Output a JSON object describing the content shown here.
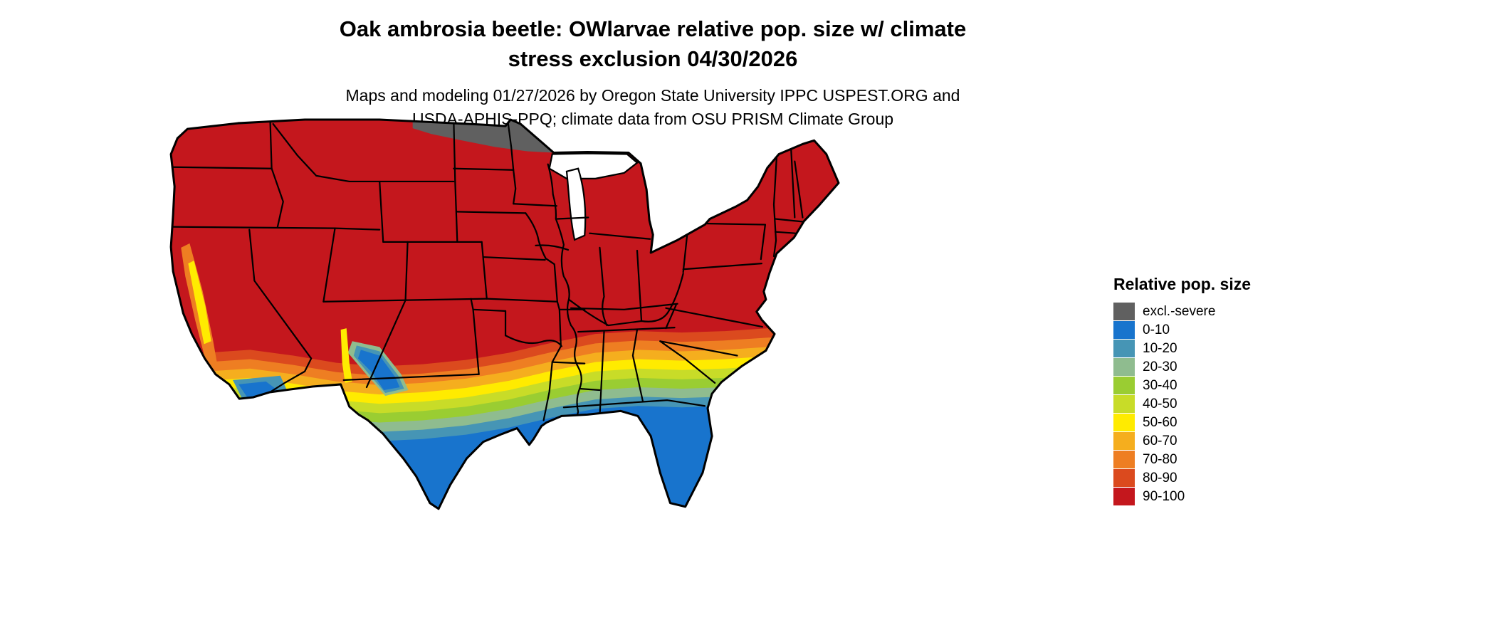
{
  "title": {
    "line1": "Oak ambrosia beetle: OWlarvae relative pop. size w/ climate",
    "line2": "stress exclusion 04/30/2026"
  },
  "subtitle": {
    "line1": "Maps and modeling 01/27/2026 by Oregon State University IPPC USPEST.ORG and",
    "line2": "USDA-APHIS-PPQ; climate data from OSU PRISM Climate Group"
  },
  "legend": {
    "title": "Relative pop. size",
    "items": [
      {
        "label": "excl.-severe",
        "color": "#606060"
      },
      {
        "label": "0-10",
        "color": "#1874CD"
      },
      {
        "label": "10-20",
        "color": "#4695B5"
      },
      {
        "label": "20-30",
        "color": "#8FBC8F"
      },
      {
        "label": "30-40",
        "color": "#9ACD32"
      },
      {
        "label": "40-50",
        "color": "#C8DC28"
      },
      {
        "label": "50-60",
        "color": "#FFEB00"
      },
      {
        "label": "60-70",
        "color": "#F5AE1E"
      },
      {
        "label": "70-80",
        "color": "#EE7E22"
      },
      {
        "label": "80-90",
        "color": "#DB4A1E"
      },
      {
        "label": "90-100",
        "color": "#C4171D"
      }
    ]
  },
  "map": {
    "border_color": "#000000",
    "water_color": "#ffffff",
    "background_color": "#ffffff"
  },
  "chart_data": {
    "type": "heatmap",
    "subtype": "choropleth-raster-map",
    "title": "Oak ambrosia beetle: OWlarvae relative pop. size w/ climate stress exclusion 04/30/2026",
    "legend_title": "Relative pop. size",
    "classes": [
      {
        "range": "excl.-severe",
        "color": "#606060"
      },
      {
        "range": "0-10",
        "color": "#1874CD"
      },
      {
        "range": "10-20",
        "color": "#4695B5"
      },
      {
        "range": "20-30",
        "color": "#8FBC8F"
      },
      {
        "range": "30-40",
        "color": "#9ACD32"
      },
      {
        "range": "40-50",
        "color": "#C8DC28"
      },
      {
        "range": "50-60",
        "color": "#FFEB00"
      },
      {
        "range": "60-70",
        "color": "#F5AE1E"
      },
      {
        "range": "70-80",
        "color": "#EE7E22"
      },
      {
        "range": "80-90",
        "color": "#DB4A1E"
      },
      {
        "range": "90-100",
        "color": "#C4171D"
      }
    ],
    "dominant_class": "90-100",
    "gradient_note": "Southern band grades from 80-90 down to 0-10 along the Gulf Coast, Florida, south Texas, and parts of California/Arizona; excl.-severe patch over northern Minnesota / northeastern North Dakota"
  }
}
